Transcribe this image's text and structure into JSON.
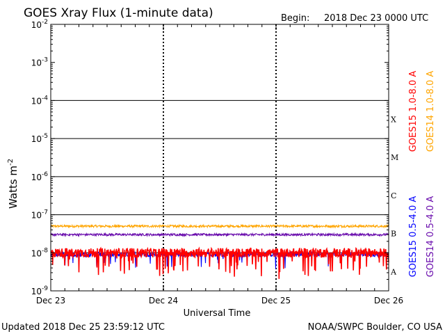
{
  "header": {
    "title": "GOES Xray Flux (1-minute data)",
    "begin_label": "Begin:",
    "begin_value": "2018 Dec 23 0000 UTC"
  },
  "footer": {
    "updated": "Updated 2018 Dec 25 23:59:12 UTC",
    "credit": "NOAA/SWPC Boulder, CO USA"
  },
  "chart_data": {
    "type": "line",
    "title": "GOES Xray Flux (1-minute data)",
    "xlabel": "Universal Time",
    "ylabel": "Watts m",
    "ylabel_superscript": "-2",
    "y_scale": "log",
    "ylim": [
      1e-09,
      0.01
    ],
    "y_ticks": [
      {
        "base": "10",
        "exp": "-2"
      },
      {
        "base": "10",
        "exp": "-3"
      },
      {
        "base": "10",
        "exp": "-4"
      },
      {
        "base": "10",
        "exp": "-5"
      },
      {
        "base": "10",
        "exp": "-6"
      },
      {
        "base": "10",
        "exp": "-7"
      },
      {
        "base": "10",
        "exp": "-8"
      },
      {
        "base": "10",
        "exp": "-9"
      }
    ],
    "x_ticks": [
      "Dec 23",
      "Dec 24",
      "Dec 25",
      "Dec 26"
    ],
    "xlim_days": [
      0,
      3
    ],
    "flare_classes": [
      {
        "label": "X",
        "flux": 0.0001
      },
      {
        "label": "M",
        "flux": 1e-05
      },
      {
        "label": "C",
        "flux": 1e-06
      },
      {
        "label": "B",
        "flux": 1e-07
      },
      {
        "label": "A",
        "flux": 1e-08
      }
    ],
    "legend_placement": "right",
    "series": [
      {
        "name": "GOES15 1.0-8.0 A",
        "color": "#ff0000",
        "base_value": 1e-08,
        "spread_dex": 0.12
      },
      {
        "name": "GOES14 1.0-8.0 A",
        "color": "#ffa500",
        "base_value": 5e-08,
        "spread_dex": 0.03
      },
      {
        "name": "GOES15 0.5-4.0 A",
        "color": "#0000ff",
        "base_value": 9e-09,
        "spread_dex": 0.06
      },
      {
        "name": "GOES14 0.5-4.0 A",
        "color": "#6a0dad",
        "base_value": 3e-08,
        "spread_dex": 0.03
      }
    ]
  }
}
